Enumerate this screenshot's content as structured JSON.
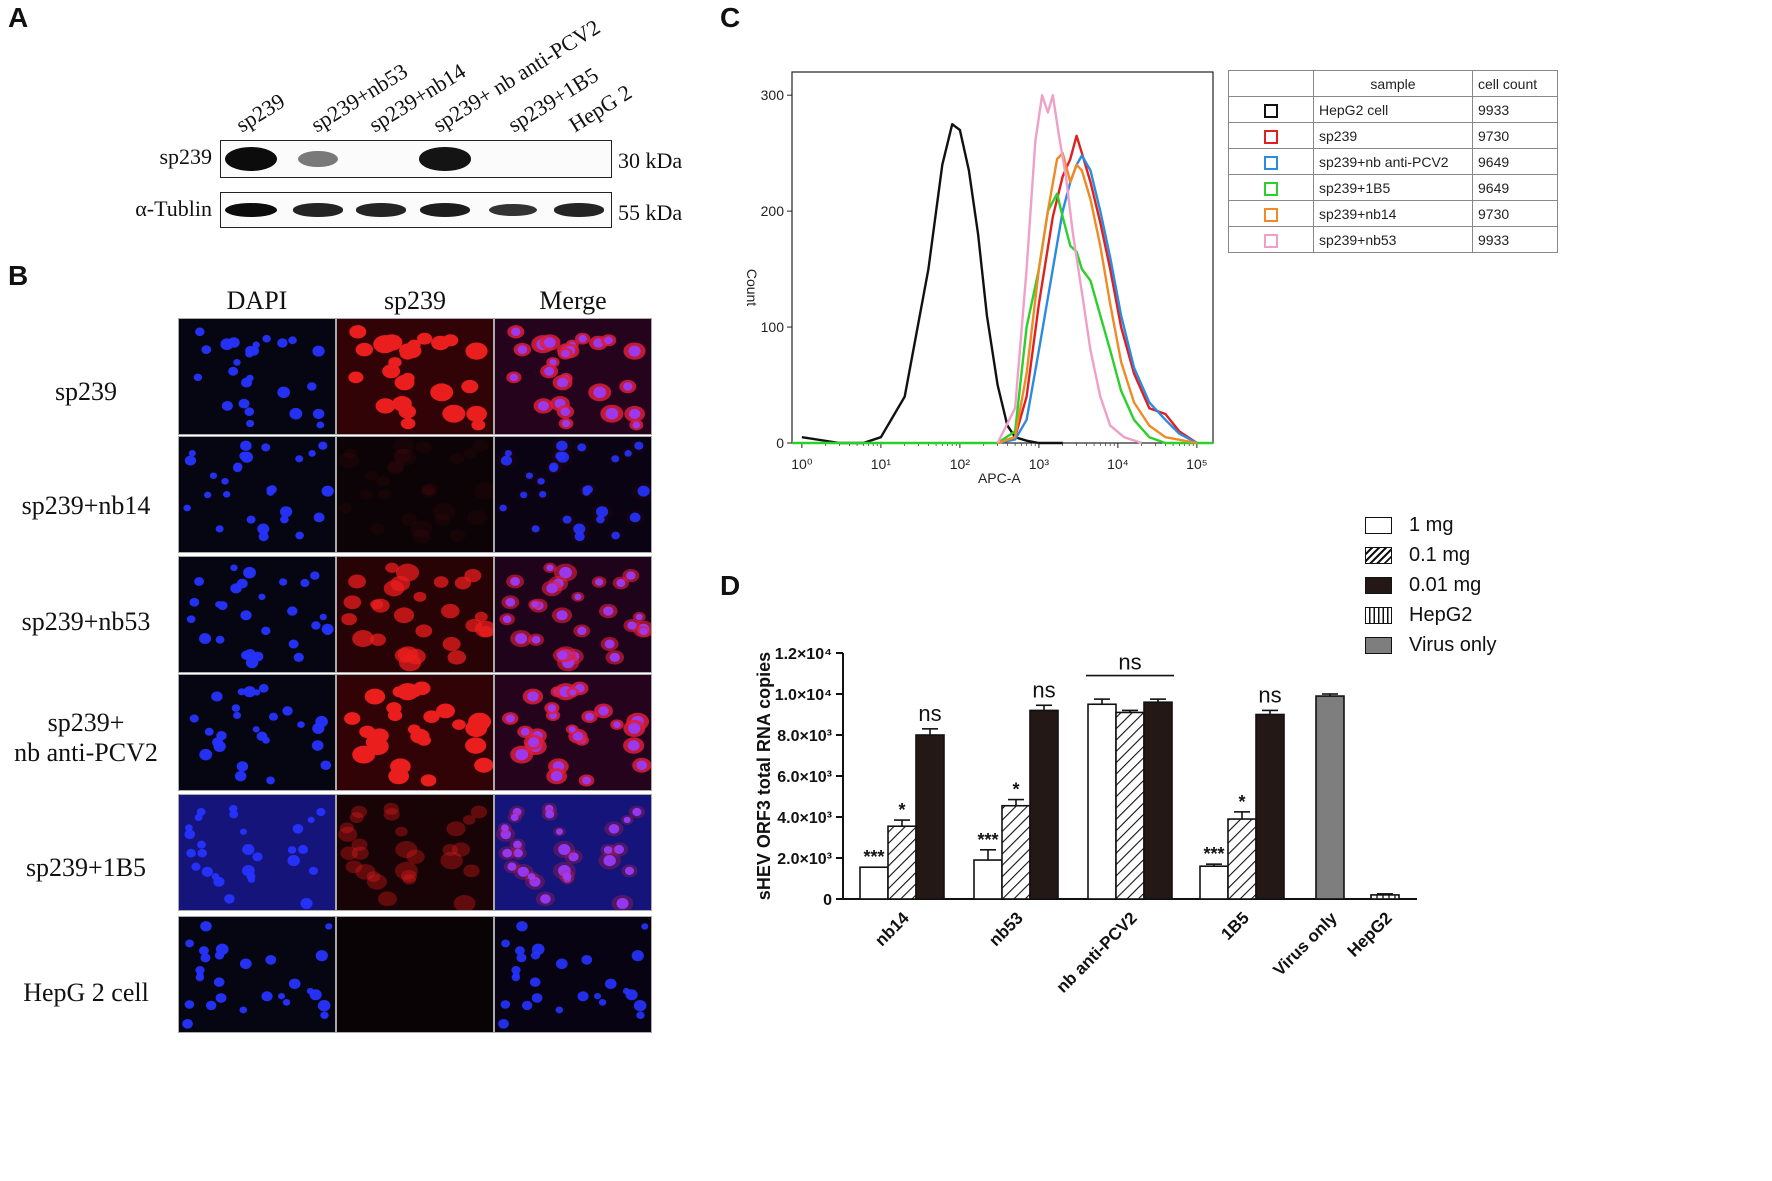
{
  "panels": {
    "a": "A",
    "b": "B",
    "c": "C",
    "d": "D"
  },
  "western_blot": {
    "lanes": [
      "sp239",
      "sp239+nb53",
      "sp239+nb14",
      "sp239+ nb anti-PCV2",
      "sp239+1B5",
      "HepG 2"
    ],
    "rows": [
      {
        "label": "sp239",
        "size": "30 kDa",
        "band_intensities": [
          1.0,
          0.3,
          0.0,
          0.95,
          0.0,
          0.0
        ]
      },
      {
        "label": "α-Tublin",
        "size": "55 kDa",
        "band_intensities": [
          1.0,
          0.85,
          0.85,
          0.9,
          0.75,
          0.85
        ]
      }
    ]
  },
  "fluorescence": {
    "columns": [
      "DAPI",
      "sp239",
      "Merge"
    ],
    "rows": [
      {
        "label_lines": [
          "sp239"
        ],
        "red_level": 1.0
      },
      {
        "label_lines": [
          "sp239+nb14"
        ],
        "red_level": 0.05
      },
      {
        "label_lines": [
          "sp239+nb53"
        ],
        "red_level": 0.75
      },
      {
        "label_lines": [
          "sp239+",
          "nb anti-PCV2"
        ],
        "red_level": 1.0
      },
      {
        "label_lines": [
          "sp239+1B5"
        ],
        "red_level": 0.35
      },
      {
        "label_lines": [
          "HepG 2 cell"
        ],
        "red_level": 0.0
      }
    ]
  },
  "flow_table": {
    "headers": [
      "",
      "sample",
      "cell count"
    ],
    "rows": [
      {
        "color": "#111111",
        "sample": "HepG2 cell",
        "count": "9933"
      },
      {
        "color": "#e02020",
        "sample": "sp239",
        "count": "9730"
      },
      {
        "color": "#2a8be0",
        "sample": "sp239+nb anti-PCV2",
        "count": "9649"
      },
      {
        "color": "#2bd02b",
        "sample": "sp239+1B5",
        "count": "9649"
      },
      {
        "color": "#f08a24",
        "sample": "sp239+nb14",
        "count": "9730"
      },
      {
        "color": "#f0a0c8",
        "sample": "sp239+nb53",
        "count": "9933"
      }
    ]
  },
  "chart_data": [
    {
      "type": "line",
      "title": "",
      "xlabel": "APC-A",
      "ylabel": "Count",
      "xscale": "log",
      "xlim": [
        0.75,
        160000
      ],
      "ylim": [
        0,
        320
      ],
      "xticks": [
        "10⁰",
        "10¹",
        "10²",
        "10³",
        "10⁴",
        "10⁵"
      ],
      "yticks": [
        "0",
        "100",
        "200",
        "300"
      ],
      "series": [
        {
          "name": "HepG2 cell",
          "color": "#111111",
          "x": [
            1,
            3,
            6,
            10,
            20,
            40,
            60,
            80,
            100,
            130,
            170,
            220,
            300,
            400,
            500,
            700,
            1000,
            2000
          ],
          "y": [
            5,
            0,
            0,
            5,
            40,
            150,
            240,
            275,
            270,
            235,
            180,
            110,
            50,
            15,
            5,
            2,
            0,
            0
          ]
        },
        {
          "name": "sp239",
          "color": "#e02020",
          "x": [
            300,
            500,
            700,
            1000,
            1500,
            2000,
            2500,
            3000,
            3500,
            4500,
            6000,
            8000,
            11000,
            16000,
            25000,
            40000,
            60000,
            100000
          ],
          "y": [
            0,
            5,
            40,
            120,
            195,
            230,
            245,
            265,
            250,
            225,
            190,
            150,
            100,
            60,
            30,
            25,
            10,
            0
          ]
        },
        {
          "name": "sp239+nb anti-PCV2",
          "color": "#2a8be0",
          "x": [
            300,
            500,
            700,
            1000,
            1500,
            2000,
            2500,
            3000,
            3500,
            4500,
            6000,
            8000,
            11000,
            16000,
            25000,
            40000,
            60000,
            100000
          ],
          "y": [
            0,
            3,
            20,
            80,
            150,
            200,
            225,
            240,
            248,
            235,
            200,
            160,
            110,
            65,
            35,
            20,
            8,
            0
          ]
        },
        {
          "name": "sp239+1B5",
          "color": "#2bd02b",
          "x": [
            0.75,
            300,
            500,
            700,
            1000,
            1300,
            1700,
            2000,
            2500,
            3000,
            3500,
            4500,
            6000,
            8000,
            11000,
            16000,
            25000,
            40000,
            160000
          ],
          "y": [
            0,
            0,
            10,
            100,
            150,
            200,
            215,
            195,
            170,
            165,
            150,
            140,
            110,
            80,
            45,
            20,
            5,
            0,
            0
          ]
        },
        {
          "name": "sp239+nb14",
          "color": "#f08a24",
          "x": [
            300,
            500,
            700,
            1000,
            1300,
            1700,
            2000,
            2500,
            3000,
            3500,
            4500,
            6000,
            8000,
            11000,
            16000,
            25000,
            40000,
            100000
          ],
          "y": [
            0,
            5,
            60,
            150,
            200,
            245,
            250,
            225,
            240,
            235,
            210,
            170,
            120,
            70,
            35,
            15,
            5,
            0
          ]
        },
        {
          "name": "sp239+nb53",
          "color": "#f0a0c8",
          "x": [
            300,
            500,
            700,
            900,
            1100,
            1300,
            1500,
            1800,
            2200,
            2700,
            3500,
            4500,
            6000,
            8000,
            12000,
            20000
          ],
          "y": [
            0,
            30,
            150,
            260,
            300,
            285,
            300,
            265,
            230,
            180,
            130,
            80,
            40,
            15,
            5,
            0
          ]
        }
      ]
    },
    {
      "type": "bar",
      "title": "",
      "xlabel": "",
      "ylabel": "sHEV ORF3 total RNA copies",
      "ylim": [
        0,
        12000
      ],
      "yticks": [
        "0",
        "2.0×10³",
        "4.0×10³",
        "6.0×10³",
        "8.0×10³",
        "1.0×10⁴",
        "1.2×10⁴"
      ],
      "categories": [
        "nb14",
        "nb53",
        "nb anti-PCV2",
        "1B5",
        "Virus only",
        "HepG2"
      ],
      "series": [
        {
          "name": "1 mg",
          "pattern": "white",
          "values": [
            1550,
            1900,
            9500,
            1600,
            null,
            null
          ],
          "errors": [
            0,
            500,
            250,
            100,
            null,
            null
          ],
          "annotations": [
            "***",
            "***",
            "",
            "***",
            "",
            ""
          ]
        },
        {
          "name": "0.1 mg",
          "pattern": "hatch",
          "values": [
            3550,
            4550,
            9100,
            3900,
            null,
            null
          ],
          "errors": [
            300,
            300,
            100,
            350,
            null,
            null
          ],
          "annotations": [
            "*",
            "*",
            "",
            "*",
            "",
            ""
          ]
        },
        {
          "name": "0.01 mg",
          "pattern": "black",
          "values": [
            8000,
            9200,
            9600,
            9000,
            null,
            null
          ],
          "errors": [
            300,
            250,
            150,
            200,
            null,
            null
          ],
          "annotations": [
            "ns",
            "ns",
            "",
            "ns",
            "",
            ""
          ]
        },
        {
          "name": "HepG2",
          "pattern": "vertical",
          "values": [
            null,
            null,
            null,
            null,
            null,
            200
          ],
          "errors": [
            null,
            null,
            null,
            null,
            null,
            50
          ],
          "annotations": [
            "",
            "",
            "",
            "",
            "",
            ""
          ]
        },
        {
          "name": "Virus only",
          "pattern": "gray",
          "values": [
            null,
            null,
            null,
            null,
            9900,
            null
          ],
          "errors": [
            null,
            null,
            null,
            null,
            100,
            null
          ],
          "annotations": [
            "",
            "",
            "",
            "",
            "",
            ""
          ]
        }
      ],
      "group_annotation": {
        "category": "nb anti-PCV2",
        "text": "ns"
      }
    }
  ]
}
